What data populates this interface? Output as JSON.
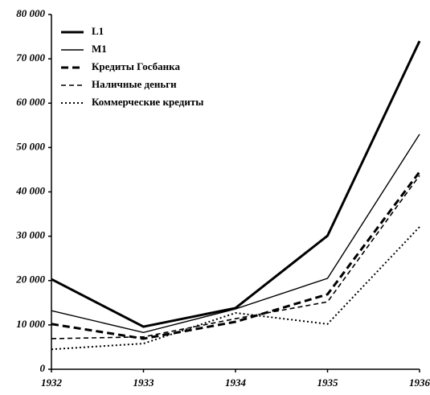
{
  "chart_data": {
    "type": "line",
    "categories": [
      "1932",
      "1933",
      "1934",
      "1935",
      "1936"
    ],
    "series": [
      {
        "name": "L1",
        "color": "#000000",
        "style": "thick",
        "values": [
          20300,
          9600,
          13800,
          30100,
          74000
        ]
      },
      {
        "name": "M1",
        "color": "#000000",
        "style": "thin",
        "values": [
          13200,
          8300,
          13600,
          20500,
          53000
        ]
      },
      {
        "name": "Кредиты Госбанка",
        "color": "#000000",
        "style": "thick-dash",
        "values": [
          10200,
          6900,
          10700,
          16900,
          44500
        ]
      },
      {
        "name": "Наличные деньги",
        "color": "#000000",
        "style": "dash",
        "values": [
          6900,
          7300,
          11400,
          15200,
          43700
        ]
      },
      {
        "name": "Коммерческие кредиты",
        "color": "#000000",
        "style": "dot",
        "values": [
          4500,
          5800,
          12700,
          10200,
          32100
        ]
      }
    ],
    "ylim": [
      0,
      80000
    ],
    "yticks": [
      {
        "value": 0,
        "label": "0"
      },
      {
        "value": 10000,
        "label": "10 000"
      },
      {
        "value": 20000,
        "label": "20 000"
      },
      {
        "value": 30000,
        "label": "30 000"
      },
      {
        "value": 40000,
        "label": "40 000"
      },
      {
        "value": 50000,
        "label": "50 000"
      },
      {
        "value": 60000,
        "label": "60 000"
      },
      {
        "value": 70000,
        "label": "70 000"
      },
      {
        "value": 80000,
        "label": "80 000"
      }
    ],
    "legend": "upper-left",
    "grid": false
  }
}
